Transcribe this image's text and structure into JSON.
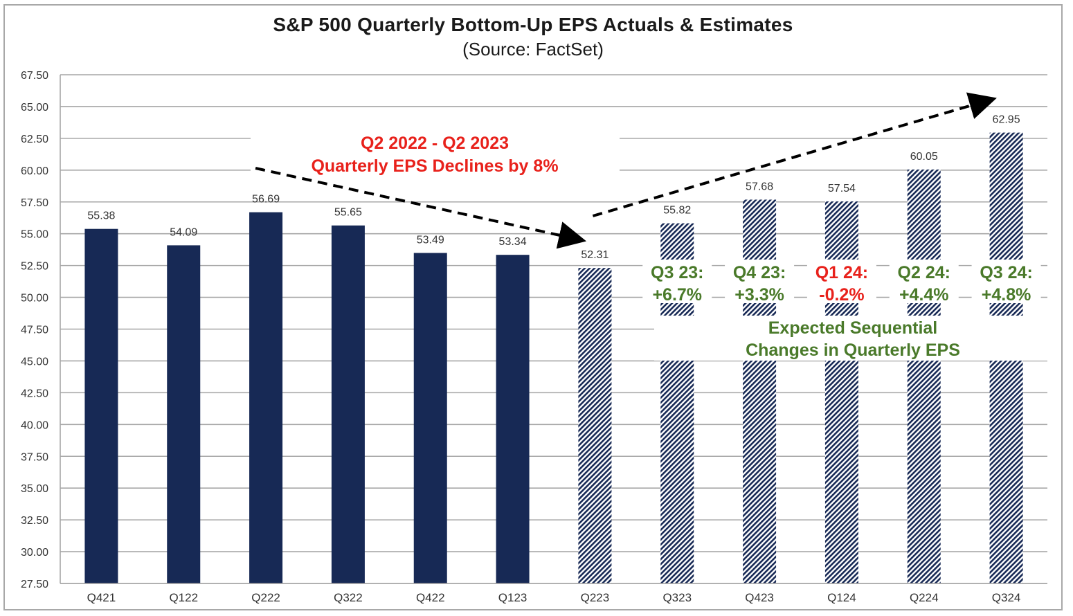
{
  "chart_data": {
    "type": "bar",
    "title": "S&P 500 Quarterly Bottom-Up EPS Actuals & Estimates",
    "subtitle": "(Source: FactSet)",
    "xlabel": "",
    "ylabel": "",
    "ylim": [
      27.5,
      67.5
    ],
    "yticks": [
      "67.50",
      "65.00",
      "62.50",
      "60.00",
      "57.50",
      "55.00",
      "52.50",
      "50.00",
      "47.50",
      "45.00",
      "42.50",
      "40.00",
      "37.50",
      "35.00",
      "32.50",
      "30.00",
      "27.50"
    ],
    "grid": true,
    "categories": [
      "Q421",
      "Q122",
      "Q222",
      "Q322",
      "Q422",
      "Q123",
      "Q223",
      "Q323",
      "Q423",
      "Q124",
      "Q224",
      "Q324"
    ],
    "series": [
      {
        "name": "Actual",
        "style": "solid",
        "values": [
          55.38,
          54.09,
          56.69,
          55.65,
          53.49,
          53.34,
          null,
          null,
          null,
          null,
          null,
          null
        ]
      },
      {
        "name": "Estimate",
        "style": "hatched",
        "values": [
          null,
          null,
          null,
          null,
          null,
          null,
          52.31,
          55.82,
          57.68,
          57.54,
          60.05,
          62.95
        ]
      }
    ],
    "data_labels": [
      "55.38",
      "54.09",
      "56.69",
      "55.65",
      "53.49",
      "53.34",
      "52.31",
      "55.82",
      "57.68",
      "57.54",
      "60.05",
      "62.95"
    ],
    "colors": {
      "actual": "#172955",
      "hatch": "#172955",
      "grid": "#a6a6a6",
      "red": "#e8211b",
      "green": "#4a7a2a"
    },
    "annotations": {
      "decline": {
        "lines": [
          "Q2 2022 - Q2 2023",
          "Quarterly EPS Declines by 8%"
        ],
        "color": "red",
        "arrow_from_category": "Q222",
        "arrow_to_category": "Q223"
      },
      "rise": {
        "arrow_from_category": "Q223",
        "arrow_to_category": "Q324"
      },
      "sequential_changes": [
        {
          "category": "Q323",
          "line1": "Q3 23:",
          "line2": "+6.7%",
          "color": "green"
        },
        {
          "category": "Q423",
          "line1": "Q4 23:",
          "line2": "+3.3%",
          "color": "green"
        },
        {
          "category": "Q124",
          "line1": "Q1 24:",
          "line2": "-0.2%",
          "color": "red"
        },
        {
          "category": "Q224",
          "line1": "Q2 24:",
          "line2": "+4.4%",
          "color": "green"
        },
        {
          "category": "Q324",
          "line1": "Q3 24:",
          "line2": "+4.8%",
          "color": "green"
        }
      ],
      "sequential_caption": [
        "Expected Sequential",
        "Changes in Quarterly EPS"
      ]
    }
  }
}
